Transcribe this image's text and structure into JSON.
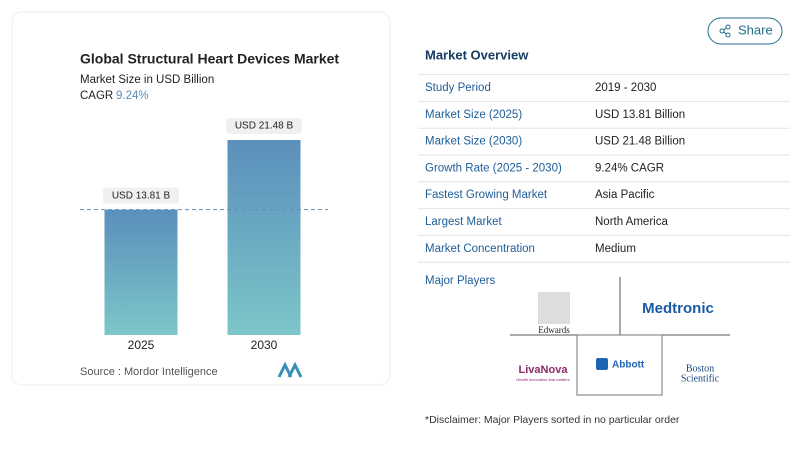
{
  "chart_data": {
    "type": "bar",
    "title": "Global Structural Heart Devices Market",
    "subtitle": "Market Size in USD Billion",
    "cagr_label": "CAGR",
    "cagr_value": "9.24%",
    "categories": [
      "2025",
      "2030"
    ],
    "values": [
      13.81,
      21.48
    ],
    "value_labels": [
      "USD 13.81 B",
      "USD 21.48 B"
    ],
    "source": "Source :  Mordor Intelligence"
  },
  "share": "Share",
  "overview": {
    "title": "Market Overview",
    "rows": [
      [
        "Study Period",
        "2019 - 2030"
      ],
      [
        "Market Size (2025)",
        "USD 13.81 Billion"
      ],
      [
        "Market Size (2030)",
        "USD 21.48 Billion"
      ],
      [
        "Growth Rate (2025 - 2030)",
        "9.24% CAGR"
      ],
      [
        "Fastest Growing Market",
        "Asia Pacific"
      ],
      [
        "Largest Market",
        "North America"
      ],
      [
        "Market Concentration",
        "Medium"
      ]
    ]
  },
  "major_players": {
    "title": "Major Players",
    "logos": [
      "Edwards",
      "Medtronic",
      "LivaNova",
      "Health innovation that matters",
      "Abbott",
      "Boston",
      "Scientific"
    ]
  },
  "disclaimer": "*Disclaimer: Major Players sorted in no particular order"
}
